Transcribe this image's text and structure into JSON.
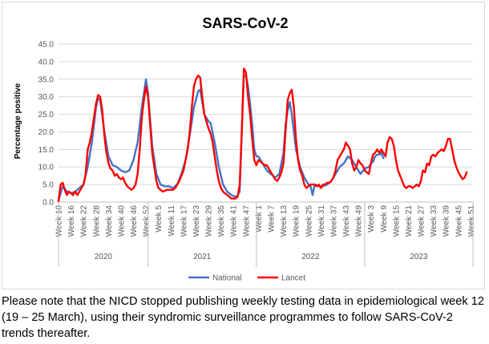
{
  "chart_data": {
    "type": "line",
    "title": "SARS-CoV-2",
    "ylabel": "Percentage positive",
    "xlabel": "",
    "ylim": [
      0,
      45
    ],
    "yticks": [
      "0.0",
      "5.0",
      "10.0",
      "15.0",
      "20.0",
      "25.0",
      "30.0",
      "35.0",
      "40.0",
      "45.0"
    ],
    "grid": true,
    "legend_position": "bottom",
    "x_tick_labels": [
      "Week 10",
      "Week 16",
      "Week 22",
      "Week 28",
      "Week 34",
      "Week 40",
      "Week 46",
      "Week 52",
      "Week 5",
      "Week 11",
      "Week 17",
      "Week 23",
      "Week 29",
      "Week 35",
      "Week 41",
      "Week 47",
      "Week 1",
      "Week 7",
      "Week 13",
      "Week 19",
      "Week 25",
      "Week 31",
      "Week 37",
      "Week 43",
      "Week 49",
      "Week 3",
      "Week 9",
      "Week 15",
      "Week 21",
      "Week 27",
      "Week 33",
      "Week 39",
      "Week 45",
      "Week 51"
    ],
    "year_groups": [
      {
        "label": "2020",
        "start_index": 0,
        "end_index": 43
      },
      {
        "label": "2021",
        "start_index": 43,
        "end_index": 95
      },
      {
        "label": "2022",
        "start_index": 95,
        "end_index": 147
      },
      {
        "label": "2023",
        "start_index": 147,
        "end_index": 199
      }
    ],
    "series": [
      {
        "name": "National",
        "color": "#4472c4",
        "points": [
          [
            0,
            0.5
          ],
          [
            2,
            4.5
          ],
          [
            4,
            3
          ],
          [
            6,
            2.5
          ],
          [
            8,
            3
          ],
          [
            10,
            4
          ],
          [
            12,
            5
          ],
          [
            14,
            10
          ],
          [
            16,
            17
          ],
          [
            18,
            27
          ],
          [
            19,
            29.5
          ],
          [
            20,
            29
          ],
          [
            22,
            20
          ],
          [
            24,
            13
          ],
          [
            26,
            10.5
          ],
          [
            28,
            10
          ],
          [
            30,
            9
          ],
          [
            32,
            8.5
          ],
          [
            34,
            9
          ],
          [
            36,
            12
          ],
          [
            38,
            17
          ],
          [
            40,
            27
          ],
          [
            41,
            31
          ],
          [
            42,
            35
          ],
          [
            43,
            31
          ],
          [
            45,
            16
          ],
          [
            47,
            8
          ],
          [
            49,
            5
          ],
          [
            51,
            4.5
          ],
          [
            53,
            4.5
          ],
          [
            55,
            4
          ],
          [
            57,
            5
          ],
          [
            59,
            8
          ],
          [
            61,
            12
          ],
          [
            63,
            19
          ],
          [
            65,
            27
          ],
          [
            67,
            31.5
          ],
          [
            68,
            32
          ],
          [
            70,
            25
          ],
          [
            72,
            23
          ],
          [
            73,
            22.5
          ],
          [
            75,
            17
          ],
          [
            77,
            10
          ],
          [
            79,
            5
          ],
          [
            81,
            3
          ],
          [
            83,
            2
          ],
          [
            85,
            1.5
          ],
          [
            86,
            1.8
          ],
          [
            87,
            3
          ],
          [
            88,
            20
          ],
          [
            89,
            36
          ],
          [
            90,
            36
          ],
          [
            91,
            33
          ],
          [
            92,
            28
          ],
          [
            93,
            22
          ],
          [
            94,
            15
          ],
          [
            95,
            13
          ],
          [
            96,
            13
          ],
          [
            98,
            11
          ],
          [
            100,
            9
          ],
          [
            102,
            8
          ],
          [
            104,
            7
          ],
          [
            106,
            8
          ],
          [
            108,
            14
          ],
          [
            109,
            22
          ],
          [
            110,
            26
          ],
          [
            111,
            28.5
          ],
          [
            112,
            25
          ],
          [
            114,
            15
          ],
          [
            116,
            10
          ],
          [
            118,
            7
          ],
          [
            120,
            5
          ],
          [
            121,
            4.5
          ],
          [
            122,
            2
          ],
          [
            123,
            5
          ],
          [
            125,
            4.5
          ],
          [
            127,
            4.5
          ],
          [
            129,
            5
          ],
          [
            131,
            6
          ],
          [
            133,
            8
          ],
          [
            135,
            10
          ],
          [
            137,
            11
          ],
          [
            139,
            13
          ],
          [
            141,
            12
          ],
          [
            143,
            10
          ],
          [
            145,
            8
          ],
          [
            147,
            9.5
          ],
          [
            149,
            10
          ],
          [
            150,
            11
          ],
          [
            151,
            11.5
          ],
          [
            152,
            13
          ],
          [
            153,
            13.5
          ],
          [
            154,
            13.5
          ],
          [
            155,
            14
          ],
          [
            156,
            12.5
          ]
        ]
      },
      {
        "name": "Lancet",
        "color": "#ff0000",
        "points": [
          [
            0,
            0.2
          ],
          [
            1,
            5
          ],
          [
            2,
            5.5
          ],
          [
            3,
            3.5
          ],
          [
            4,
            2
          ],
          [
            5,
            3
          ],
          [
            6,
            2.5
          ],
          [
            7,
            2
          ],
          [
            8,
            3
          ],
          [
            9,
            2
          ],
          [
            10,
            3
          ],
          [
            11,
            4
          ],
          [
            12,
            5
          ],
          [
            13,
            8
          ],
          [
            14,
            15
          ],
          [
            15,
            17
          ],
          [
            16,
            20
          ],
          [
            17,
            24
          ],
          [
            18,
            28
          ],
          [
            19,
            30.5
          ],
          [
            20,
            30
          ],
          [
            21,
            26
          ],
          [
            22,
            19
          ],
          [
            23,
            14
          ],
          [
            24,
            11
          ],
          [
            25,
            9.5
          ],
          [
            26,
            9
          ],
          [
            27,
            7.5
          ],
          [
            28,
            8
          ],
          [
            29,
            7
          ],
          [
            30,
            6.5
          ],
          [
            31,
            7
          ],
          [
            32,
            5.5
          ],
          [
            33,
            4.5
          ],
          [
            34,
            4
          ],
          [
            35,
            3.5
          ],
          [
            36,
            4
          ],
          [
            37,
            5
          ],
          [
            38,
            8
          ],
          [
            39,
            15
          ],
          [
            40,
            24
          ],
          [
            41,
            29
          ],
          [
            42,
            33
          ],
          [
            43,
            30
          ],
          [
            44,
            22
          ],
          [
            45,
            14
          ],
          [
            46,
            10
          ],
          [
            47,
            6
          ],
          [
            48,
            4
          ],
          [
            49,
            3.5
          ],
          [
            50,
            3
          ],
          [
            51,
            3.2
          ],
          [
            52,
            3.5
          ],
          [
            53,
            3.5
          ],
          [
            54,
            3.5
          ],
          [
            55,
            3.5
          ],
          [
            56,
            4
          ],
          [
            57,
            5
          ],
          [
            58,
            6
          ],
          [
            59,
            7.5
          ],
          [
            60,
            9
          ],
          [
            61,
            12
          ],
          [
            62,
            15
          ],
          [
            63,
            20
          ],
          [
            64,
            27
          ],
          [
            65,
            33
          ],
          [
            66,
            35
          ],
          [
            67,
            36
          ],
          [
            68,
            35.5
          ],
          [
            69,
            30
          ],
          [
            70,
            25
          ],
          [
            71,
            23
          ],
          [
            72,
            21
          ],
          [
            73,
            19.5
          ],
          [
            74,
            17
          ],
          [
            75,
            13
          ],
          [
            76,
            9
          ],
          [
            77,
            6
          ],
          [
            78,
            4
          ],
          [
            79,
            3
          ],
          [
            80,
            2.5
          ],
          [
            81,
            2
          ],
          [
            82,
            1.5
          ],
          [
            83,
            1
          ],
          [
            84,
            1
          ],
          [
            85,
            1
          ],
          [
            86,
            1.5
          ],
          [
            87,
            5
          ],
          [
            88,
            20
          ],
          [
            89,
            38
          ],
          [
            90,
            37
          ],
          [
            91,
            30
          ],
          [
            92,
            25
          ],
          [
            93,
            18
          ],
          [
            94,
            12
          ],
          [
            95,
            10.5
          ],
          [
            96,
            12
          ],
          [
            97,
            11.5
          ],
          [
            98,
            11
          ],
          [
            99,
            10.5
          ],
          [
            100,
            10.5
          ],
          [
            101,
            9.5
          ],
          [
            102,
            8.5
          ],
          [
            103,
            7.5
          ],
          [
            104,
            6.5
          ],
          [
            105,
            6
          ],
          [
            106,
            7
          ],
          [
            107,
            8.5
          ],
          [
            108,
            11
          ],
          [
            109,
            20
          ],
          [
            110,
            29
          ],
          [
            111,
            31
          ],
          [
            112,
            32
          ],
          [
            113,
            27
          ],
          [
            114,
            18
          ],
          [
            115,
            12
          ],
          [
            116,
            9
          ],
          [
            117,
            7.5
          ],
          [
            118,
            5
          ],
          [
            119,
            4
          ],
          [
            120,
            4.5
          ],
          [
            121,
            5
          ],
          [
            122,
            5
          ],
          [
            123,
            5
          ],
          [
            124,
            4.5
          ],
          [
            125,
            5
          ],
          [
            126,
            4
          ],
          [
            127,
            5
          ],
          [
            128,
            5
          ],
          [
            129,
            5.5
          ],
          [
            130,
            5.5
          ],
          [
            131,
            6
          ],
          [
            132,
            7
          ],
          [
            133,
            9
          ],
          [
            134,
            12
          ],
          [
            135,
            13
          ],
          [
            136,
            14
          ],
          [
            137,
            15
          ],
          [
            138,
            17
          ],
          [
            139,
            16
          ],
          [
            140,
            15
          ],
          [
            141,
            11
          ],
          [
            142,
            9
          ],
          [
            143,
            10
          ],
          [
            144,
            12
          ],
          [
            145,
            11
          ],
          [
            146,
            10.5
          ],
          [
            147,
            9
          ],
          [
            148,
            8.5
          ],
          [
            149,
            8
          ],
          [
            150,
            11
          ],
          [
            151,
            13.5
          ],
          [
            152,
            14
          ],
          [
            153,
            15
          ],
          [
            154,
            14
          ],
          [
            155,
            15
          ],
          [
            156,
            14
          ],
          [
            157,
            13
          ],
          [
            158,
            17
          ],
          [
            159,
            18.5
          ],
          [
            160,
            18
          ],
          [
            161,
            16
          ],
          [
            162,
            12
          ],
          [
            163,
            9
          ],
          [
            164,
            7.5
          ],
          [
            165,
            6
          ],
          [
            166,
            4.5
          ],
          [
            167,
            4
          ],
          [
            168,
            4.5
          ],
          [
            169,
            4.5
          ],
          [
            170,
            4
          ],
          [
            171,
            4.5
          ],
          [
            172,
            5
          ],
          [
            173,
            4.5
          ],
          [
            174,
            6
          ],
          [
            175,
            9
          ],
          [
            176,
            8.5
          ],
          [
            177,
            11
          ],
          [
            178,
            10.5
          ],
          [
            179,
            13
          ],
          [
            180,
            13.5
          ],
          [
            181,
            13
          ],
          [
            182,
            14
          ],
          [
            183,
            14.5
          ],
          [
            184,
            15
          ],
          [
            185,
            14.5
          ],
          [
            186,
            16
          ],
          [
            187,
            18
          ],
          [
            188,
            18
          ],
          [
            189,
            15
          ],
          [
            190,
            12
          ],
          [
            191,
            10
          ],
          [
            192,
            8.5
          ],
          [
            193,
            7.5
          ],
          [
            194,
            6.5
          ],
          [
            195,
            7
          ],
          [
            196,
            8.5
          ]
        ]
      }
    ]
  },
  "footnote": "Please note that the NICD stopped publishing weekly testing data in epidemiological week 12 (19 – 25 March), using their syndromic surveillance programmes to follow SARS-CoV-2 trends thereafter."
}
